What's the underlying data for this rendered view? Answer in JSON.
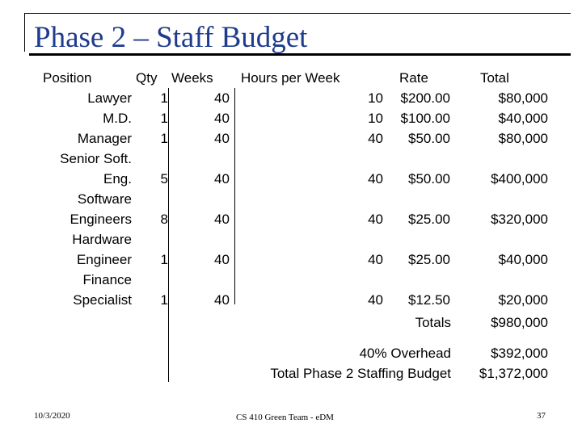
{
  "slide": {
    "title": "Phase 2 – Staff Budget"
  },
  "table": {
    "headers": {
      "position": "Position",
      "qty": "Qty",
      "weeks": "Weeks",
      "hours": "Hours per Week",
      "rate": "Rate",
      "total": "Total"
    },
    "rows": [
      {
        "position": [
          "Lawyer"
        ],
        "qty": "1",
        "weeks": "40",
        "hours": "10",
        "rate": "$200.00",
        "total": "$80,000"
      },
      {
        "position": [
          "M.D."
        ],
        "qty": "1",
        "weeks": "40",
        "hours": "10",
        "rate": "$100.00",
        "total": "$40,000"
      },
      {
        "position": [
          "Manager"
        ],
        "qty": "1",
        "weeks": "40",
        "hours": "40",
        "rate": "$50.00",
        "total": "$80,000"
      },
      {
        "position": [
          "Senior Soft.",
          "Eng."
        ],
        "qty": "5",
        "weeks": "40",
        "hours": "40",
        "rate": "$50.00",
        "total": "$400,000"
      },
      {
        "position": [
          "Software",
          "Engineers"
        ],
        "qty": "8",
        "weeks": "40",
        "hours": "40",
        "rate": "$25.00",
        "total": "$320,000"
      },
      {
        "position": [
          "Hardware",
          "Engineer"
        ],
        "qty": "1",
        "weeks": "40",
        "hours": "40",
        "rate": "$25.00",
        "total": "$40,000"
      },
      {
        "position": [
          "Finance",
          "Specialist"
        ],
        "qty": "1",
        "weeks": "40",
        "hours": "40",
        "rate": "$12.50",
        "total": "$20,000"
      }
    ],
    "summary": {
      "totals_label": "Totals",
      "totals_value": "$980,000",
      "overhead_label": "40% Overhead",
      "overhead_value": "$392,000",
      "budget_label": "Total Phase 2 Staffing Budget",
      "budget_value": "$1,372,000"
    }
  },
  "footer": {
    "date": "10/3/2020",
    "center": "CS 410 Green Team - eDM",
    "page_number": "37"
  }
}
